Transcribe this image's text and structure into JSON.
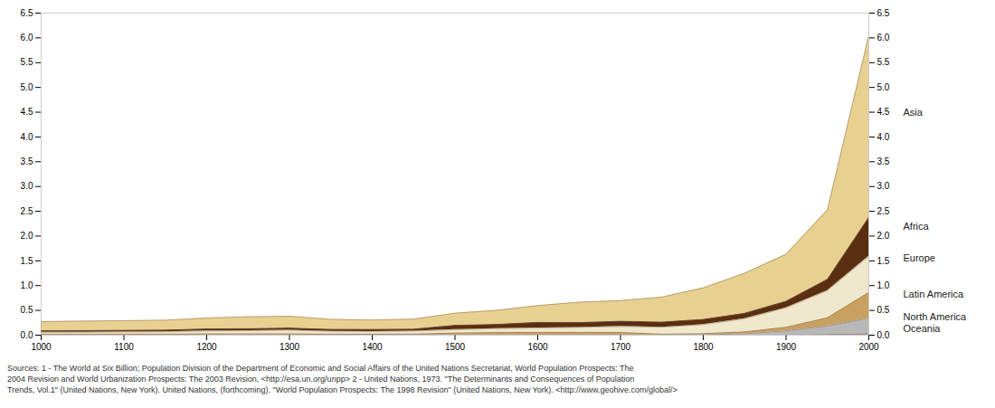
{
  "chart_data": {
    "type": "area",
    "stacked": true,
    "grid": false,
    "caption": "Sources:  1 - The World at Six Billion; Population Division of the Department of Economic and Social Affairs of the United Nations Secretariat, World Population Prospects: The\n2004 Revision and World Urbanization Prospects: The 2003 Revision, <http://esa.un.org/unpp>  2 - United Nations, 1973. \"The Determinants and Consequences of Population\nTrends, Vol.1\" (United Nations, New York). United Nations, (forthcoming). \"World Population Prospects: The 1998 Revision\" (United Nations, New York).   <http://www.geohive.com/global/>",
    "x": [
      1000,
      1050,
      1100,
      1150,
      1200,
      1250,
      1300,
      1350,
      1400,
      1450,
      1500,
      1550,
      1600,
      1650,
      1700,
      1750,
      1800,
      1850,
      1900,
      1950,
      2000
    ],
    "xlim": [
      1000,
      2000
    ],
    "xticks": [
      1000,
      1100,
      1200,
      1300,
      1400,
      1500,
      1600,
      1700,
      1800,
      1900,
      2000
    ],
    "ylim": [
      0,
      6.5
    ],
    "yticks": [
      {
        "value": 0,
        "label": "0.0"
      },
      {
        "value": 0.5,
        "label": "0.5"
      },
      {
        "value": 1,
        "label": "1.0"
      },
      {
        "value": 1.5,
        "label": "1.5"
      },
      {
        "value": 2,
        "label": "2.0"
      },
      {
        "value": 2.5,
        "label": "2.5"
      },
      {
        "value": 3,
        "label": "3.0"
      },
      {
        "value": 3.5,
        "label": "3.5"
      },
      {
        "value": 4,
        "label": "4.0"
      },
      {
        "value": 4.5,
        "label": "4.5"
      },
      {
        "value": 5,
        "label": "5.0"
      },
      {
        "value": 5.5,
        "label": "5.5"
      },
      {
        "value": 6,
        "label": "6.0"
      },
      {
        "value": 6.5,
        "label": "6.5"
      }
    ],
    "y2lim": [
      0,
      6.5
    ],
    "y2ticks": [
      {
        "value": 0,
        "label": "0.0"
      },
      {
        "value": 0.5,
        "label": "0.5"
      },
      {
        "value": 1,
        "label": "1.0"
      },
      {
        "value": 1.5,
        "label": "1.5"
      },
      {
        "value": 2,
        "label": "2.0"
      },
      {
        "value": 2.5,
        "label": "2.5"
      },
      {
        "value": 3,
        "label": "3.0"
      },
      {
        "value": 3.5,
        "label": "3.5"
      },
      {
        "value": 4,
        "label": "4.0"
      },
      {
        "value": 4.5,
        "label": "4.5"
      },
      {
        "value": 5,
        "label": "5.0"
      },
      {
        "value": 5.5,
        "label": "5.5"
      },
      {
        "value": 6,
        "label": "6.0"
      },
      {
        "value": 6.5,
        "label": "6.5"
      }
    ],
    "series": [
      {
        "name": "Oceania",
        "color": "#a0a0a0",
        "values": [
          0.002,
          0.002,
          0.002,
          0.002,
          0.003,
          0.003,
          0.003,
          0.003,
          0.003,
          0.003,
          0.003,
          0.003,
          0.003,
          0.003,
          0.003,
          0.003,
          0.002,
          0.003,
          0.006,
          0.013,
          0.031
        ]
      },
      {
        "name": "North America",
        "color": "#b8b8b8",
        "values": [
          0.002,
          0.002,
          0.003,
          0.003,
          0.003,
          0.003,
          0.003,
          0.003,
          0.003,
          0.003,
          0.003,
          0.003,
          0.003,
          0.003,
          0.003,
          0.002,
          0.007,
          0.026,
          0.082,
          0.172,
          0.313
        ]
      },
      {
        "name": "Latin America",
        "color": "#c8a060",
        "values": [
          0.017,
          0.017,
          0.017,
          0.017,
          0.022,
          0.022,
          0.022,
          0.017,
          0.017,
          0.017,
          0.039,
          0.05,
          0.05,
          0.05,
          0.05,
          0.016,
          0.024,
          0.038,
          0.074,
          0.167,
          0.519
        ]
      },
      {
        "name": "Europe",
        "color": "#f0e8cc",
        "values": [
          0.037,
          0.04,
          0.044,
          0.048,
          0.058,
          0.062,
          0.074,
          0.055,
          0.052,
          0.06,
          0.067,
          0.078,
          0.089,
          0.1,
          0.12,
          0.14,
          0.18,
          0.265,
          0.39,
          0.547,
          0.729
        ]
      },
      {
        "name": "Africa",
        "color": "#5a2e10",
        "values": [
          0.033,
          0.033,
          0.033,
          0.033,
          0.042,
          0.042,
          0.042,
          0.042,
          0.042,
          0.042,
          0.087,
          0.087,
          0.113,
          0.1,
          0.107,
          0.106,
          0.107,
          0.111,
          0.133,
          0.229,
          0.784
        ]
      },
      {
        "name": "Asia",
        "color": "#e8d090",
        "values": [
          0.183,
          0.19,
          0.195,
          0.2,
          0.22,
          0.24,
          0.238,
          0.2,
          0.19,
          0.2,
          0.245,
          0.28,
          0.338,
          0.41,
          0.415,
          0.502,
          0.635,
          0.809,
          0.947,
          1.402,
          3.672
        ]
      }
    ],
    "annotations": [
      {
        "text": "Asia",
        "y": 4.5,
        "axis": "y2"
      },
      {
        "text": "Africa",
        "y": 2.2,
        "axis": "y2"
      },
      {
        "text": "Europe",
        "y": 1.55,
        "axis": "y2"
      },
      {
        "text": "Latin America",
        "y": 0.82,
        "axis": "y2"
      },
      {
        "text": "North America",
        "y": 0.36,
        "axis": "y2"
      },
      {
        "text": "Oceania",
        "y": 0.12,
        "axis": "y2"
      }
    ]
  }
}
